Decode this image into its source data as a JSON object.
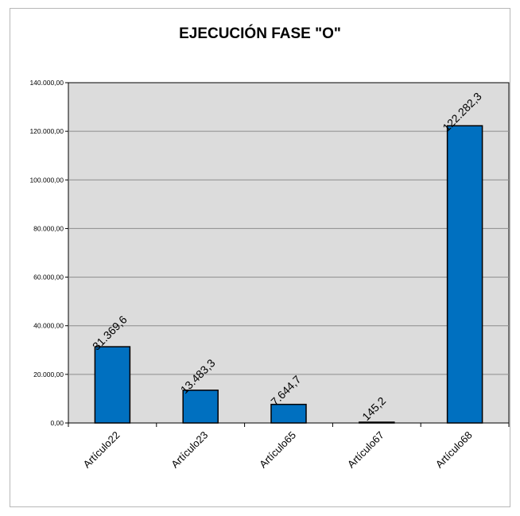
{
  "chart_data": {
    "type": "bar",
    "title": "EJECUCIÓN FASE \"O\"",
    "xlabel": "",
    "ylabel": "",
    "ylim": [
      0,
      140000
    ],
    "yticks": [
      "0,00",
      "20.000,00",
      "40.000,00",
      "60.000,00",
      "80.000,00",
      "100.000,00",
      "120.000,00",
      "140.000,00"
    ],
    "categories": [
      "Artículo22",
      "Artículo23",
      "Artículo65",
      "Artículo67",
      "Artículo68"
    ],
    "values": [
      31369.6,
      13483.3,
      7644.7,
      145.2,
      122282.3
    ],
    "data_labels": [
      "31.369,6",
      "13.483,3",
      "7.644,7",
      "145,2",
      "122.282,3"
    ],
    "grid": true,
    "legend": "none",
    "colors": {
      "bar": "#0070c0",
      "plot_background": "#dcdcdc",
      "gridline": "#8c8c8c"
    }
  }
}
